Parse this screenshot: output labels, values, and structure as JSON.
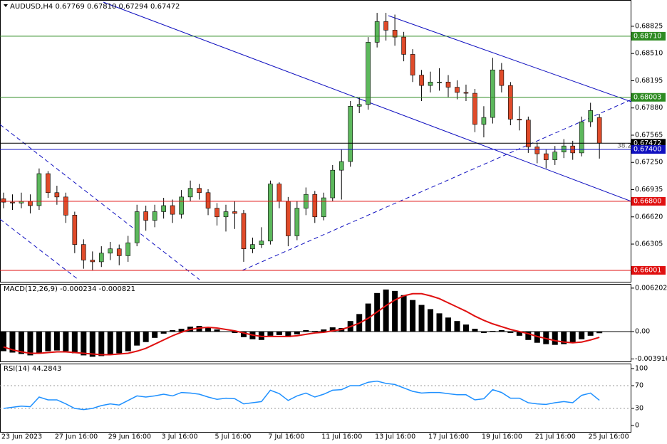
{
  "chart_data": [
    {
      "type": "candlestick",
      "title": "AUDUSD,H4  0.67769 0.67810 0.67294 0.67472",
      "categories": [
        "23 Jun 2023",
        null,
        null,
        null,
        null,
        null,
        "27 Jun 16:00",
        null,
        null,
        null,
        null,
        null,
        "29 Jun 16:00",
        null,
        null,
        null,
        null,
        null,
        "3 Jul 16:00",
        null,
        null,
        null,
        null,
        null,
        "5 Jul 16:00",
        null,
        null,
        null,
        null,
        null,
        "7 Jul 16:00",
        null,
        null,
        null,
        null,
        null,
        "11 Jul 16:00",
        null,
        null,
        null,
        null,
        null,
        "13 Jul 16:00",
        null,
        null,
        null,
        null,
        null,
        "17 Jul 16:00",
        null,
        null,
        null,
        null,
        null,
        "19 Jul 16:00",
        null,
        null,
        null,
        null,
        null,
        "21 Jul 16:00",
        null,
        null,
        null,
        null,
        null,
        "25 Jul 16:00",
        null
      ],
      "open": [
        0.6683,
        0.6679,
        0.6678,
        0.668,
        0.6675,
        0.6712,
        0.669,
        0.6685,
        0.6664,
        0.663,
        0.6612,
        0.661,
        0.662,
        0.6625,
        0.6617,
        0.6632,
        0.6668,
        0.6658,
        0.6668,
        0.6675,
        0.6665,
        0.6685,
        0.6695,
        0.669,
        0.6672,
        0.6662,
        0.6668,
        0.6666,
        0.6625,
        0.663,
        0.6634,
        0.67,
        0.668,
        0.664,
        0.6672,
        0.6688,
        0.6662,
        0.6684,
        0.6716,
        0.6726,
        0.679,
        0.6792,
        0.6864,
        0.6888,
        0.6878,
        0.687,
        0.685,
        0.6826,
        0.6814,
        0.6818,
        0.6818,
        0.6812,
        0.6806,
        0.6805,
        0.6769,
        0.6777,
        0.6832,
        0.6814,
        0.6775,
        0.6774,
        0.6743,
        0.6735,
        0.6728,
        0.6737,
        0.6744,
        0.6736,
        0.6772,
        0.67769
      ],
      "high": [
        0.669,
        0.6688,
        0.669,
        0.6688,
        0.6718,
        0.6715,
        0.6698,
        0.669,
        0.6668,
        0.6636,
        0.6622,
        0.6628,
        0.6633,
        0.663,
        0.664,
        0.6676,
        0.6675,
        0.6676,
        0.6684,
        0.6682,
        0.6693,
        0.6704,
        0.67,
        0.6694,
        0.6678,
        0.6676,
        0.668,
        0.667,
        0.6638,
        0.665,
        0.6704,
        0.6702,
        0.6685,
        0.668,
        0.6696,
        0.6692,
        0.669,
        0.6722,
        0.674,
        0.6796,
        0.68,
        0.687,
        0.6898,
        0.6898,
        0.6896,
        0.6876,
        0.6856,
        0.6832,
        0.683,
        0.6834,
        0.6826,
        0.682,
        0.6815,
        0.681,
        0.679,
        0.6846,
        0.684,
        0.6818,
        0.679,
        0.6778,
        0.6748,
        0.674,
        0.6744,
        0.6752,
        0.675,
        0.6778,
        0.6794,
        0.6781
      ],
      "low": [
        0.6672,
        0.667,
        0.6672,
        0.6666,
        0.667,
        0.6684,
        0.6676,
        0.6655,
        0.662,
        0.6602,
        0.66,
        0.6604,
        0.6612,
        0.6606,
        0.661,
        0.6628,
        0.6646,
        0.665,
        0.666,
        0.6655,
        0.666,
        0.668,
        0.6682,
        0.6664,
        0.6652,
        0.6645,
        0.6648,
        0.661,
        0.662,
        0.6626,
        0.663,
        0.6672,
        0.6628,
        0.6635,
        0.6664,
        0.6655,
        0.6658,
        0.668,
        0.6682,
        0.672,
        0.6782,
        0.6786,
        0.6858,
        0.6866,
        0.686,
        0.6842,
        0.6818,
        0.6796,
        0.6806,
        0.6808,
        0.68,
        0.6798,
        0.6796,
        0.676,
        0.6754,
        0.677,
        0.6806,
        0.6768,
        0.6762,
        0.6736,
        0.6724,
        0.6718,
        0.6722,
        0.673,
        0.6728,
        0.6732,
        0.6766,
        0.67294
      ],
      "close": [
        0.6679,
        0.6678,
        0.668,
        0.6675,
        0.6712,
        0.669,
        0.6685,
        0.6664,
        0.663,
        0.6612,
        0.661,
        0.662,
        0.6625,
        0.6617,
        0.6632,
        0.6668,
        0.6658,
        0.6668,
        0.6675,
        0.6665,
        0.6685,
        0.6695,
        0.669,
        0.6672,
        0.6662,
        0.6668,
        0.6666,
        0.6625,
        0.663,
        0.6634,
        0.67,
        0.668,
        0.664,
        0.6672,
        0.6688,
        0.6662,
        0.6684,
        0.6716,
        0.6726,
        0.679,
        0.6792,
        0.6864,
        0.6888,
        0.6878,
        0.687,
        0.685,
        0.6826,
        0.6814,
        0.6818,
        0.6818,
        0.6812,
        0.6806,
        0.6805,
        0.6769,
        0.6777,
        0.6832,
        0.6814,
        0.6775,
        0.6774,
        0.6743,
        0.6735,
        0.6728,
        0.6737,
        0.6744,
        0.6736,
        0.6772,
        0.6785,
        0.67472
      ],
      "up_color": "#5cb85c",
      "down_color": "#e04b2a",
      "ylim": [
        0.65869,
        0.69129
      ],
      "yticks": [
        {
          "value": 0.68825,
          "label": "0.68825"
        },
        {
          "value": 0.6851,
          "label": "0.68510"
        },
        {
          "value": 0.68195,
          "label": "0.68195"
        },
        {
          "value": 0.6788,
          "label": "0.67880"
        },
        {
          "value": 0.67565,
          "label": "0.67565"
        },
        {
          "value": 0.6725,
          "label": "0.67250"
        },
        {
          "value": 0.66935,
          "label": "0.66935"
        },
        {
          "value": 0.6662,
          "label": "0.66620"
        },
        {
          "value": 0.66305,
          "label": "0.66305"
        }
      ],
      "levels": [
        {
          "value": 0.6871,
          "label": "0.68710",
          "color": "#2e8b22"
        },
        {
          "value": 0.68003,
          "label": "0.68003",
          "color": "#2e8b22"
        },
        {
          "value": 0.67472,
          "label": "0.67472",
          "color": "#000000"
        },
        {
          "value": 0.674,
          "label": "0.67400",
          "color": "#1010c0"
        },
        {
          "value": 0.668,
          "label": "0.66800",
          "color": "#e01010"
        },
        {
          "value": 0.66001,
          "label": "0.66001",
          "color": "#e01010"
        }
      ],
      "annotation": "38.2"
    },
    {
      "type": "macd",
      "title": "MACD(12,26,9) -0.000234 -0.000821",
      "values": [
        -0.0028,
        -0.003,
        -0.0032,
        -0.0034,
        -0.003,
        -0.0028,
        -0.0027,
        -0.0028,
        -0.0031,
        -0.0034,
        -0.0036,
        -0.0035,
        -0.0033,
        -0.0031,
        -0.0028,
        -0.002,
        -0.0015,
        -0.0009,
        -0.0003,
        0.0002,
        0.0004,
        0.0007,
        0.0008,
        0.0006,
        0.0003,
        0.0,
        -0.0002,
        -0.0008,
        -0.0011,
        -0.0012,
        -0.0006,
        -0.0005,
        -0.0008,
        -0.0004,
        0.0002,
        0.0001,
        0.0003,
        0.0006,
        0.0005,
        0.0015,
        0.0025,
        0.004,
        0.0055,
        0.006,
        0.0058,
        0.0052,
        0.0045,
        0.0038,
        0.0032,
        0.0026,
        0.002,
        0.0015,
        0.001,
        0.0004,
        -0.0002,
        0.0001,
        0.0002,
        -0.0002,
        -0.0006,
        -0.0012,
        -0.0016,
        -0.0018,
        -0.0019,
        -0.0018,
        -0.0016,
        -0.0011,
        -0.0006,
        -0.000234
      ],
      "signal": [
        -0.0022,
        -0.0026,
        -0.0029,
        -0.0031,
        -0.0031,
        -0.003,
        -0.0029,
        -0.0029,
        -0.003,
        -0.0031,
        -0.0032,
        -0.0033,
        -0.0033,
        -0.0032,
        -0.0031,
        -0.0028,
        -0.0024,
        -0.0018,
        -0.0012,
        -0.0006,
        -0.0001,
        0.0003,
        0.0005,
        0.0006,
        0.0005,
        0.0003,
        0.0001,
        -0.0002,
        -0.0005,
        -0.0007,
        -0.0007,
        -0.0007,
        -0.0007,
        -0.0006,
        -0.0004,
        -0.0002,
        -0.0001,
        0.0001,
        0.0003,
        0.0007,
        0.0012,
        0.0019,
        0.0028,
        0.0037,
        0.0045,
        0.0051,
        0.0054,
        0.0054,
        0.0051,
        0.0047,
        0.0041,
        0.0035,
        0.0029,
        0.0022,
        0.0016,
        0.0011,
        0.0007,
        0.0003,
        0.0,
        -0.0003,
        -0.0007,
        -0.001,
        -0.0013,
        -0.0015,
        -0.0016,
        -0.0015,
        -0.0012,
        -0.000821
      ],
      "color": "#000000",
      "signal_color": "#e01010",
      "ylim": [
        -0.00427,
        0.0067
      ],
      "yticks": [
        0.006202,
        {
          "value": 0,
          "label": "0.00"
        },
        -0.003916
      ]
    },
    {
      "type": "line",
      "title": "RSI(14) 44.2843",
      "values": [
        30,
        32,
        34,
        33,
        50,
        45,
        45,
        38,
        30,
        28,
        30,
        35,
        38,
        36,
        44,
        52,
        50,
        52,
        55,
        52,
        58,
        57,
        55,
        50,
        46,
        48,
        47,
        38,
        40,
        42,
        62,
        56,
        44,
        52,
        57,
        50,
        55,
        62,
        63,
        70,
        70,
        76,
        78,
        74,
        72,
        66,
        60,
        57,
        58,
        58,
        56,
        54,
        54,
        45,
        47,
        63,
        58,
        48,
        48,
        40,
        38,
        37,
        40,
        42,
        40,
        53,
        57,
        44.2843
      ],
      "color": "#1e90ff",
      "ylim": [
        -11.25,
        108.75
      ],
      "yticks": [
        100,
        70,
        30,
        0
      ],
      "dashed_grid": [
        70,
        30
      ]
    }
  ]
}
